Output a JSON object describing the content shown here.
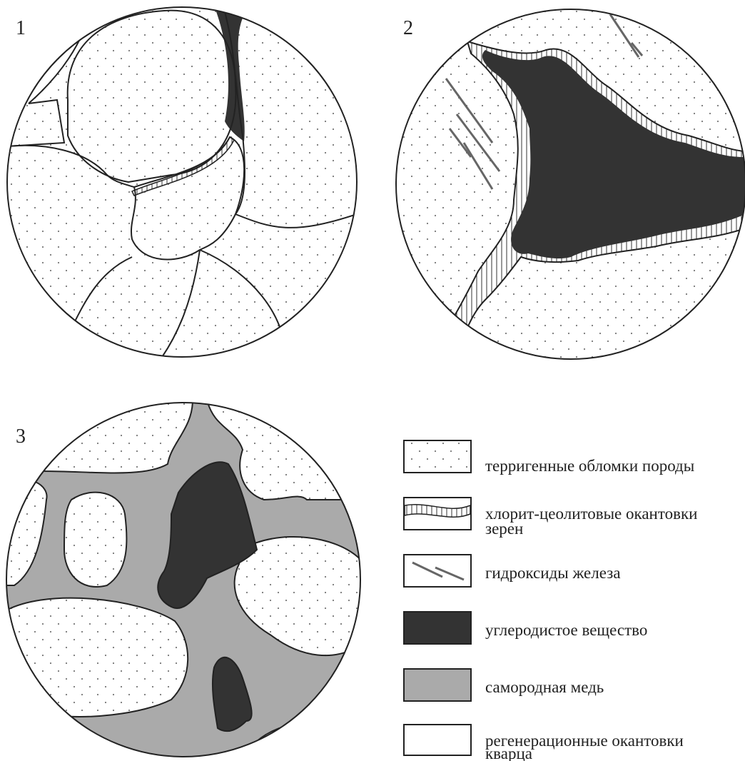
{
  "panels": {
    "labels": [
      "1",
      "2",
      "3"
    ]
  },
  "legend": {
    "items": [
      {
        "lines": [
          "терригенные обломки породы"
        ]
      },
      {
        "lines": [
          "хлорит-цеолитовые окантовки",
          "зерен"
        ]
      },
      {
        "lines": [
          "гидроксиды железа"
        ]
      },
      {
        "lines": [
          "углеродистое вещество"
        ]
      },
      {
        "lines": [
          "самородная медь"
        ]
      },
      {
        "lines": [
          "регенерационные окантовки",
          "кварца"
        ]
      }
    ]
  }
}
